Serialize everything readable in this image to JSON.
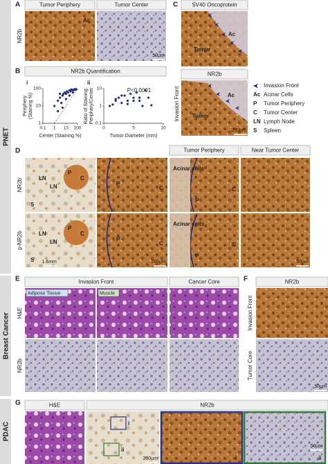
{
  "side_labels": [
    "PNET",
    "Breast Cancer",
    "PDAC"
  ],
  "panel_letters": [
    "A",
    "B",
    "C",
    "D",
    "E",
    "F",
    "G"
  ],
  "panel_a": {
    "headers": [
      "Tumor Periphery",
      "Tumor Center"
    ],
    "row_label": "NR2b",
    "annotation": "Ac",
    "scale_bar": "50µm"
  },
  "panel_b": {
    "title": "NR2b Quantification",
    "plots": [
      {
        "label": "i",
        "y_label": [
          "Periphery",
          "(Staining %)"
        ],
        "x_label": "Center (Staining %)",
        "log_x": true,
        "log_y": true,
        "xlim": [
          0.1,
          100
        ],
        "ylim": [
          1,
          100
        ],
        "xticks": [
          0.1,
          1,
          10,
          100
        ],
        "yticks": [
          1,
          10,
          100
        ],
        "x": [
          1,
          2,
          3,
          4,
          5,
          6,
          8,
          10,
          12,
          15,
          20,
          25,
          30,
          40,
          50,
          60,
          70,
          80,
          5,
          10,
          3,
          20,
          40,
          2
        ],
        "y": [
          10,
          20,
          30,
          15,
          40,
          50,
          60,
          50,
          70,
          60,
          80,
          70,
          90,
          80,
          90,
          85,
          95,
          90,
          8,
          25,
          50,
          40,
          60,
          5
        ]
      },
      {
        "label": "ii",
        "annotation": "P<0.0001",
        "y_label": [
          "Ratio of Staining:",
          "Periphery/Center"
        ],
        "x_label": "Tumor Diameter (mm)",
        "log_x": false,
        "log_y": true,
        "xlim": [
          0,
          10
        ],
        "ylim": [
          0.1,
          10
        ],
        "xticks": [
          0,
          5,
          10
        ],
        "yticks": [
          0.1,
          1,
          10
        ],
        "x": [
          1,
          1.5,
          2,
          2.5,
          3,
          3.5,
          4,
          4.5,
          5,
          5.5,
          6,
          6.5,
          7,
          7.5,
          8,
          2,
          3,
          4,
          5,
          6
        ],
        "y": [
          1,
          1.2,
          2,
          3,
          1.5,
          4,
          2,
          5,
          3,
          6,
          2,
          1,
          8,
          3,
          1.1,
          2.5,
          4,
          1.3,
          2,
          3
        ]
      }
    ]
  },
  "panel_c": {
    "headers": [
      "SV40 Oncoprotein",
      "NR2b"
    ],
    "row_label": "Invasion Front",
    "annotations": [
      "Ac",
      "Tumor",
      "Ac",
      "Tumor"
    ],
    "scale_bar": "200µm",
    "legend": [
      {
        "label": "Invasion Front"
      },
      {
        "symbol": "Ac",
        "label": "Acinar Cells"
      },
      {
        "symbol": "P",
        "label": "Tumor Periphery"
      },
      {
        "symbol": "C",
        "label": "Tumor Center"
      },
      {
        "symbol": "LN",
        "label": "Lymph Node"
      },
      {
        "symbol": "S",
        "label": "Spleen"
      }
    ]
  },
  "panel_d": {
    "headers": [
      "Tumor Periphery",
      "Near Tumor Center"
    ],
    "row_labels": [
      "NR2b",
      "p-NR2b"
    ],
    "annotations": [
      "P",
      "C",
      "LN",
      "LN",
      "S",
      "P",
      "C",
      "Acinar cells",
      "P",
      "C",
      "P",
      "C",
      "LN",
      "LN",
      "S",
      "P",
      "C",
      "Acinar cells",
      "P",
      "C"
    ],
    "scale_bars": [
      "1.6mm",
      "200µm",
      "50µm"
    ]
  },
  "panel_e": {
    "headers": [
      "Invasion Front",
      "Cancer Core"
    ],
    "row_labels": [
      "H&E",
      "NR2b"
    ],
    "tags": [
      "Adipose Tissue",
      "Muscle"
    ]
  },
  "panel_f": {
    "header": "NR2b",
    "row_labels": [
      "Invasion Front",
      "Tumor Core"
    ],
    "scale_bar": "50µm"
  },
  "panel_g": {
    "headers": [
      "H&E",
      "NR2b"
    ],
    "insets": [
      "i",
      "ii",
      "i",
      "ii"
    ],
    "scale_bars": [
      "200µm",
      "50µm"
    ]
  }
}
